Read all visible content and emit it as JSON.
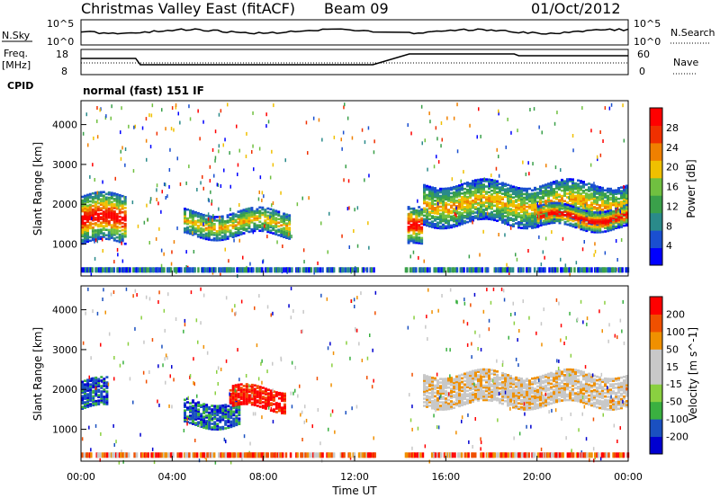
{
  "header": {
    "title": "Christmas Valley East (fitACF)",
    "beam": "Beam 09",
    "date": "01/Oct/2012",
    "mode": "normal (fast) 151 IF"
  },
  "nsky_panel": {
    "left_label": "N.Sky",
    "left_ticks": [
      "10^5",
      "10^0"
    ],
    "right_ticks": [
      "10^5",
      "10^0"
    ],
    "right_label": "N.Search"
  },
  "freq_panel": {
    "left_label_1": "Freq.",
    "left_label_2": "[MHz]",
    "left_ticks": [
      "18",
      "8"
    ],
    "right_ticks": [
      "60",
      "0"
    ],
    "right_label": "Nave"
  },
  "cpid_label": "CPID",
  "x_axis": {
    "label": "Time UT",
    "ticks": [
      "00:00",
      "04:00",
      "08:00",
      "12:00",
      "16:00",
      "20:00",
      "00:00"
    ]
  },
  "power_panel": {
    "ylabel": "Slant Range [km]",
    "yticks": [
      "4000",
      "3000",
      "2000",
      "1000"
    ],
    "colorbar_label": "Power [dB]",
    "colorbar_ticks": [
      "28",
      "24",
      "20",
      "16",
      "12",
      "8",
      "4"
    ],
    "colorbar_colors": [
      "#0000ff",
      "#1a4fd0",
      "#2a8a8a",
      "#3aa04a",
      "#70c040",
      "#f0c000",
      "#f08000",
      "#f03000",
      "#ff0000"
    ]
  },
  "velocity_panel": {
    "ylabel": "Slant Range [km]",
    "yticks": [
      "4000",
      "3000",
      "2000",
      "1000"
    ],
    "colorbar_label": "Velocity [m s^-1]",
    "colorbar_ticks": [
      "200",
      "100",
      "50",
      "15",
      "-15",
      "-50",
      "-100",
      "-200"
    ],
    "colorbar_colors": [
      "#ff0000",
      "#f05000",
      "#f09000",
      "#c8c8c8",
      "#c8c8c8",
      "#8ad040",
      "#3ab040",
      "#1a50c0",
      "#0000d0"
    ]
  },
  "chart_data": {
    "type": "heatmap",
    "x_range_hours": [
      0,
      24
    ],
    "y_range_km": [
      200,
      4600
    ],
    "gaps_hours": [
      [
        10.6,
        10.75
      ],
      [
        11.1,
        11.3
      ],
      [
        12.9,
        14.2
      ]
    ],
    "power_bands": [
      {
        "t": [
          0,
          2
        ],
        "range": [
          1000,
          2200
        ],
        "level": "high"
      },
      {
        "t": [
          4.5,
          9.2
        ],
        "range": [
          1200,
          1800
        ],
        "level": "mid"
      },
      {
        "t": [
          14.2,
          15.0
        ],
        "range": [
          900,
          1800
        ],
        "level": "high"
      },
      {
        "t": [
          15.0,
          24
        ],
        "range": [
          1500,
          2500
        ],
        "level": "mid"
      },
      {
        "t": [
          20,
          24
        ],
        "range": [
          1400,
          1900
        ],
        "level": "high"
      }
    ],
    "velocity_bands": [
      {
        "t": [
          0,
          1.2
        ],
        "range": [
          1500,
          2200
        ],
        "class": "toward"
      },
      {
        "t": [
          4.5,
          7.0
        ],
        "range": [
          1100,
          1700
        ],
        "class": "toward"
      },
      {
        "t": [
          6.5,
          9.0
        ],
        "range": [
          1500,
          2000
        ],
        "class": "away"
      },
      {
        "t": [
          15.0,
          24
        ],
        "range": [
          1600,
          2400
        ],
        "class": "low"
      }
    ]
  }
}
